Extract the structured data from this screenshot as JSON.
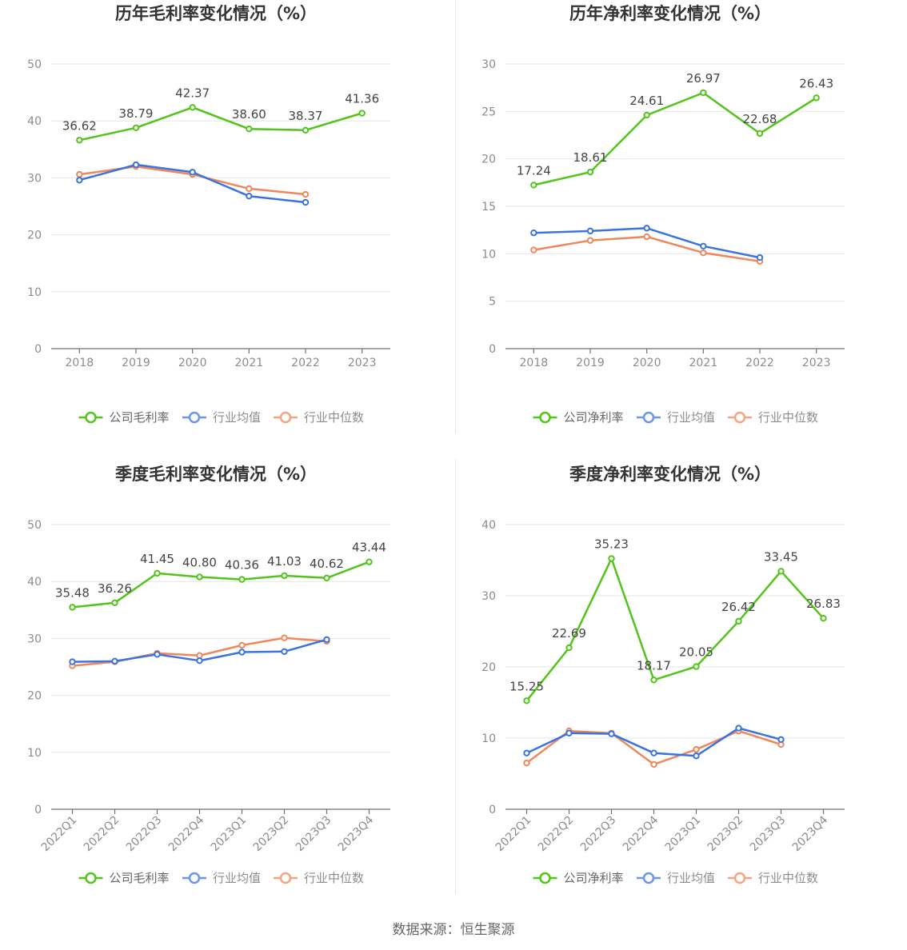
{
  "source_text": "数据来源：恒生聚源",
  "colors": {
    "company": "#52c41a",
    "industry_avg": "#3b73e0",
    "industry_median": "#f0875a"
  },
  "chart_data": [
    {
      "type": "line",
      "title": "历年毛利率变化情况（%）",
      "categories": [
        "2018",
        "2019",
        "2020",
        "2021",
        "2022",
        "2023"
      ],
      "ylim": [
        0,
        50
      ],
      "yticks": [
        0,
        10,
        20,
        30,
        40,
        50
      ],
      "grid": true,
      "legend_position": "bottom",
      "rotate_x_labels": false,
      "series": [
        {
          "name": "公司毛利率",
          "values": [
            36.62,
            38.79,
            42.37,
            38.6,
            38.37,
            41.36
          ],
          "labels": [
            "36.62",
            "38.79",
            "42.37",
            "38.60",
            "38.37",
            "41.36"
          ]
        },
        {
          "name": "行业均值",
          "values": [
            29.6,
            32.3,
            31.0,
            26.8,
            25.7,
            null
          ]
        },
        {
          "name": "行业中位数",
          "values": [
            30.6,
            32.0,
            30.6,
            28.1,
            27.1,
            null
          ]
        }
      ]
    },
    {
      "type": "line",
      "title": "历年净利率变化情况（%）",
      "categories": [
        "2018",
        "2019",
        "2020",
        "2021",
        "2022",
        "2023"
      ],
      "ylim": [
        0,
        30
      ],
      "yticks": [
        0,
        5,
        10,
        15,
        20,
        25,
        30
      ],
      "grid": true,
      "legend_position": "bottom",
      "rotate_x_labels": false,
      "series": [
        {
          "name": "公司净利率",
          "values": [
            17.24,
            18.61,
            24.61,
            26.97,
            22.68,
            26.43
          ],
          "labels": [
            "17.24",
            "18.61",
            "24.61",
            "26.97",
            "22.68",
            "26.43"
          ]
        },
        {
          "name": "行业均值",
          "values": [
            12.2,
            12.4,
            12.7,
            10.8,
            9.6,
            null
          ]
        },
        {
          "name": "行业中位数",
          "values": [
            10.4,
            11.4,
            11.8,
            10.1,
            9.2,
            null
          ]
        }
      ]
    },
    {
      "type": "line",
      "title": "季度毛利率变化情况（%）",
      "categories": [
        "2022Q1",
        "2022Q2",
        "2022Q3",
        "2022Q4",
        "2023Q1",
        "2023Q2",
        "2023Q3",
        "2023Q4"
      ],
      "ylim": [
        0,
        50
      ],
      "yticks": [
        0,
        10,
        20,
        30,
        40,
        50
      ],
      "grid": true,
      "legend_position": "bottom",
      "rotate_x_labels": true,
      "series": [
        {
          "name": "公司毛利率",
          "values": [
            35.48,
            36.26,
            41.45,
            40.8,
            40.36,
            41.03,
            40.62,
            43.44
          ],
          "labels": [
            "35.48",
            "36.26",
            "41.45",
            "40.80",
            "40.36",
            "41.03",
            "40.62",
            "43.44"
          ]
        },
        {
          "name": "行业均值",
          "values": [
            25.9,
            26.0,
            27.2,
            26.1,
            27.6,
            27.7,
            29.8,
            null
          ]
        },
        {
          "name": "行业中位数",
          "values": [
            25.2,
            25.9,
            27.4,
            27.0,
            28.8,
            30.1,
            29.5,
            null
          ]
        }
      ]
    },
    {
      "type": "line",
      "title": "季度净利率变化情况（%）",
      "categories": [
        "2022Q1",
        "2022Q2",
        "2022Q3",
        "2022Q4",
        "2023Q1",
        "2023Q2",
        "2023Q3",
        "2023Q4"
      ],
      "ylim": [
        0,
        40
      ],
      "yticks": [
        0,
        10,
        20,
        30,
        40
      ],
      "grid": true,
      "legend_position": "bottom",
      "rotate_x_labels": true,
      "series": [
        {
          "name": "公司净利率",
          "values": [
            15.25,
            22.69,
            35.23,
            18.17,
            20.05,
            26.42,
            33.45,
            26.83
          ],
          "labels": [
            "15.25",
            "22.69",
            "35.23",
            "18.17",
            "20.05",
            "26.42",
            "33.45",
            "26.83"
          ]
        },
        {
          "name": "行业均值",
          "values": [
            7.9,
            10.7,
            10.6,
            7.9,
            7.5,
            11.4,
            9.8,
            null
          ]
        },
        {
          "name": "行业中位数",
          "values": [
            6.5,
            11.0,
            10.7,
            6.3,
            8.4,
            11.0,
            9.1,
            null
          ]
        }
      ]
    }
  ]
}
